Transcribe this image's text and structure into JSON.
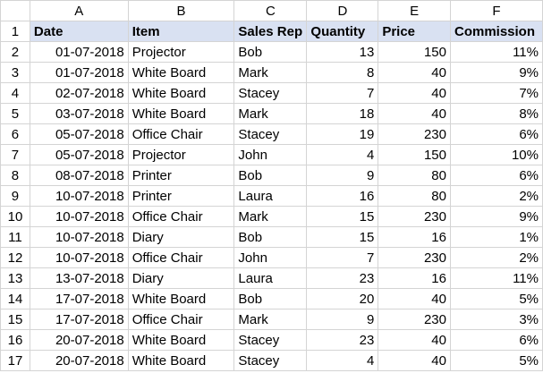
{
  "columns": [
    "A",
    "B",
    "C",
    "D",
    "E",
    "F"
  ],
  "header": [
    "Date",
    "Item",
    "Sales Rep",
    "Quantity",
    "Price",
    "Commission"
  ],
  "rows": [
    [
      "01-07-2018",
      "Projector",
      "Bob",
      "13",
      "150",
      "11%"
    ],
    [
      "01-07-2018",
      "White Board",
      "Mark",
      "8",
      "40",
      "9%"
    ],
    [
      "02-07-2018",
      "White Board",
      "Stacey",
      "7",
      "40",
      "7%"
    ],
    [
      "03-07-2018",
      "White Board",
      "Mark",
      "18",
      "40",
      "8%"
    ],
    [
      "05-07-2018",
      "Office Chair",
      "Stacey",
      "19",
      "230",
      "6%"
    ],
    [
      "05-07-2018",
      "Projector",
      "John",
      "4",
      "150",
      "10%"
    ],
    [
      "08-07-2018",
      "Printer",
      "Bob",
      "9",
      "80",
      "6%"
    ],
    [
      "10-07-2018",
      "Printer",
      "Laura",
      "16",
      "80",
      "2%"
    ],
    [
      "10-07-2018",
      "Office Chair",
      "Mark",
      "15",
      "230",
      "9%"
    ],
    [
      "10-07-2018",
      "Diary",
      "Bob",
      "15",
      "16",
      "1%"
    ],
    [
      "10-07-2018",
      "Office Chair",
      "John",
      "7",
      "230",
      "2%"
    ],
    [
      "13-07-2018",
      "Diary",
      "Laura",
      "23",
      "16",
      "11%"
    ],
    [
      "17-07-2018",
      "White Board",
      "Bob",
      "20",
      "40",
      "5%"
    ],
    [
      "17-07-2018",
      "Office Chair",
      "Mark",
      "9",
      "230",
      "3%"
    ],
    [
      "20-07-2018",
      "White Board",
      "Stacey",
      "23",
      "40",
      "6%"
    ],
    [
      "20-07-2018",
      "White Board",
      "Stacey",
      "4",
      "40",
      "5%"
    ]
  ],
  "header_fill": "#d9e1f2",
  "gridline_color": "#d4d4d4"
}
